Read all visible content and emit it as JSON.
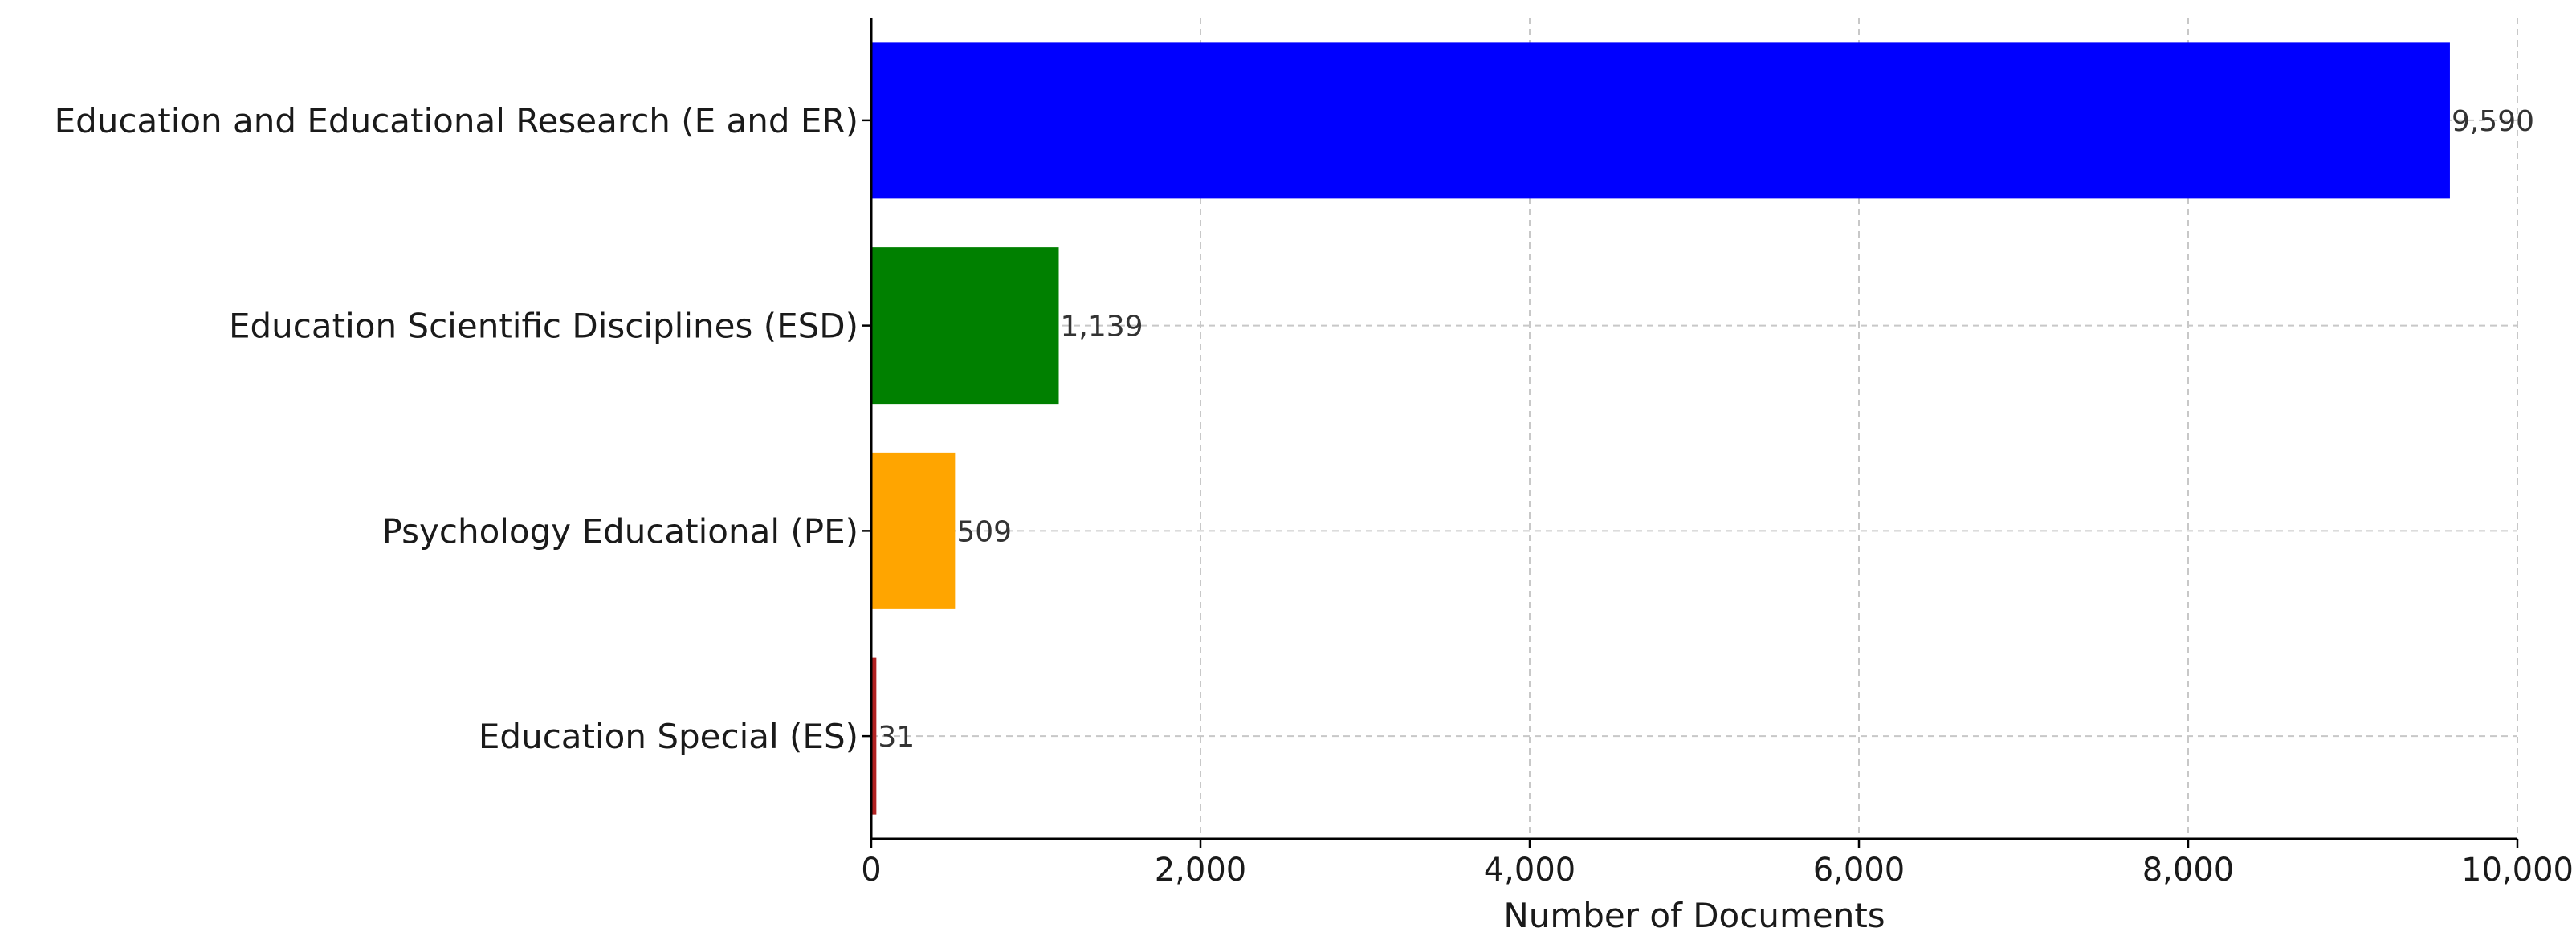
{
  "chart_data": {
    "type": "bar",
    "orientation": "horizontal",
    "categories": [
      "Education and Educational Research (E and ER)",
      "Education Scientific Disciplines (ESD)",
      "Psychology Educational (PE)",
      "Education Special (ES)"
    ],
    "values": [
      9590,
      1139,
      509,
      31
    ],
    "value_labels": [
      "9,590",
      "1,139",
      "509",
      "31"
    ],
    "colors": [
      "#0000ff",
      "#008000",
      "#ffa500",
      "#b22222"
    ],
    "xlabel": "Number of Documents",
    "ylabel": "",
    "xlim": [
      0,
      10000
    ],
    "x_ticks": [
      0,
      2000,
      4000,
      6000,
      8000,
      10000
    ],
    "x_tick_labels": [
      "0",
      "2,000",
      "4,000",
      "6,000",
      "8,000",
      "10,000"
    ],
    "grid": true,
    "grid_style": "dashed"
  }
}
